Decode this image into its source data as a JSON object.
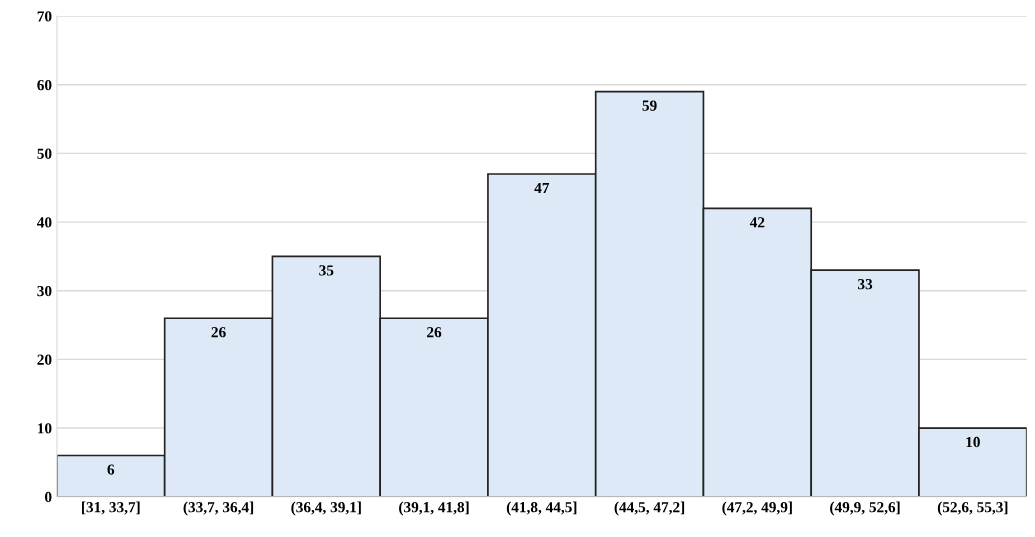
{
  "chart_data": {
    "type": "bar",
    "categories": [
      "[31, 33,7]",
      "(33,7, 36,4]",
      "(36,4, 39,1]",
      "(39,1, 41,8]",
      "(41,8, 44,5]",
      "(44,5, 47,2]",
      "(47,2, 49,9]",
      "(49,9, 52,6]",
      "(52,6, 55,3]"
    ],
    "values": [
      6,
      26,
      35,
      26,
      47,
      59,
      42,
      33,
      10
    ],
    "color": "#dde9f7",
    "ylim": [
      0,
      70
    ],
    "yticks": [
      0,
      10,
      20,
      30,
      40,
      50,
      60,
      70
    ],
    "grid": "y",
    "data_labels": true
  }
}
